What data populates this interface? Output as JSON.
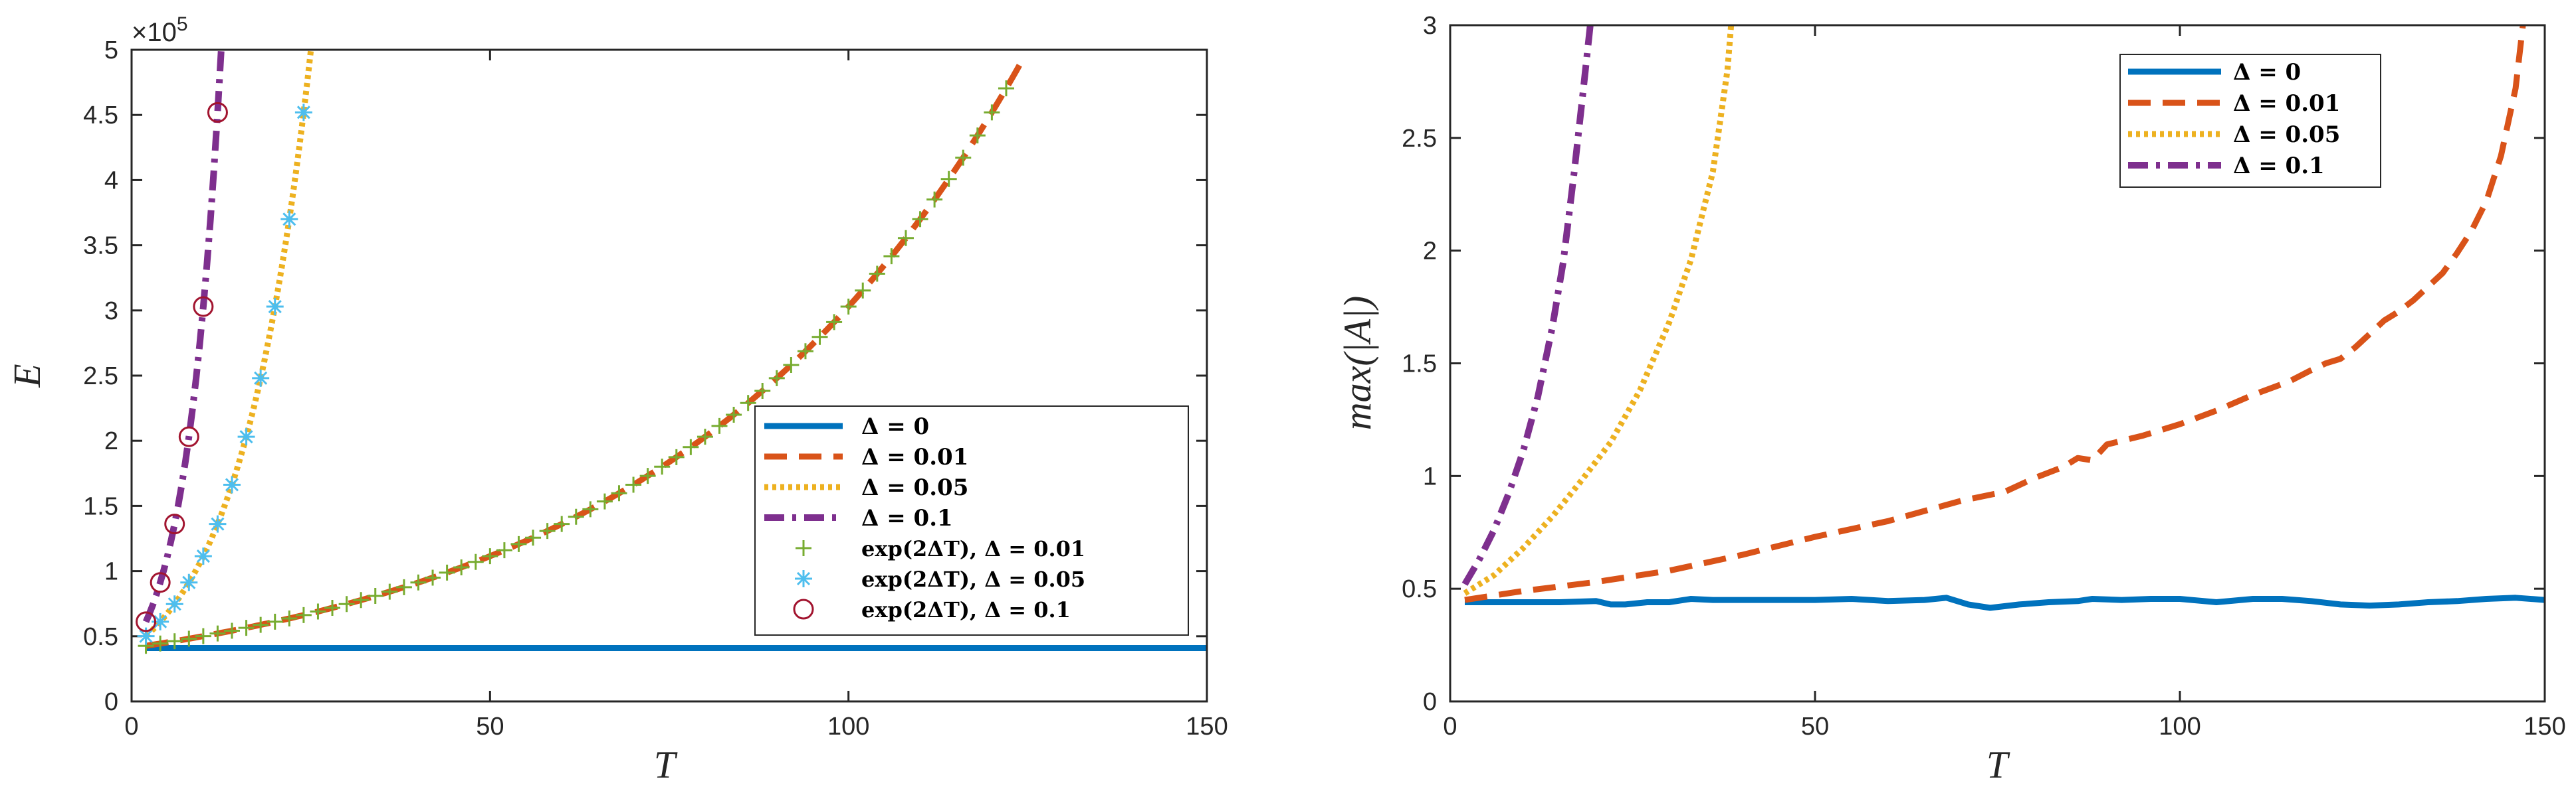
{
  "colors": {
    "blue": "#0072bd",
    "orange": "#d95319",
    "yellow": "#edb120",
    "purple": "#7e2f8e",
    "green": "#77ac30",
    "cyan": "#4dbeee",
    "maroon": "#a2142f"
  },
  "chart_data": [
    {
      "type": "line",
      "panel": "left",
      "xlabel": "T",
      "ylabel": "E",
      "xlim": [
        0,
        150
      ],
      "ylim": [
        0,
        500000
      ],
      "y_multiplier_label": "×10",
      "y_multiplier_exponent": "5",
      "xticks": [
        "0",
        "50",
        "100",
        "150"
      ],
      "yticks": [
        "0",
        "0.5",
        "1",
        "1.5",
        "2",
        "2.5",
        "3",
        "3.5",
        "4",
        "4.5",
        "5"
      ],
      "legend_position": "lower-right",
      "series": [
        {
          "name": "Δ = 0",
          "legend_id": "d0",
          "style": "solid",
          "color_key": "blue",
          "formula": "const",
          "E0": 41000,
          "t_start": 2,
          "t_end": 150
        },
        {
          "name": "Δ = 0.01",
          "legend_id": "d001",
          "style": "dashed",
          "color_key": "orange",
          "formula": "exp",
          "delta": 0.01,
          "E0": 41000,
          "t_start": 2,
          "t_end": 124
        },
        {
          "name": "Δ = 0.05",
          "legend_id": "d005",
          "style": "dotted",
          "color_key": "yellow",
          "formula": "exp",
          "delta": 0.05,
          "E0": 41000,
          "t_start": 2,
          "t_end": 30
        },
        {
          "name": "Δ = 0.1",
          "legend_id": "d01",
          "style": "dashdot",
          "color_key": "purple",
          "formula": "exp",
          "delta": 0.1,
          "E0": 41000,
          "t_start": 2,
          "t_end": 15
        },
        {
          "name": "exp(2ΔT), Δ = 0.01",
          "legend_id": "m001",
          "style": "marker-plus",
          "color_key": "green",
          "formula": "exp",
          "delta": 0.01,
          "E0": 41000,
          "t_start": 2,
          "t_end": 122,
          "t_step": 2
        },
        {
          "name": "exp(2ΔT), Δ = 0.05",
          "legend_id": "m005",
          "style": "marker-star",
          "color_key": "cyan",
          "formula": "exp",
          "delta": 0.05,
          "E0": 41000,
          "t_start": 2,
          "t_end": 24,
          "t_step": 2
        },
        {
          "name": "exp(2ΔT), Δ = 0.1",
          "legend_id": "m01",
          "style": "marker-circle",
          "color_key": "maroon",
          "formula": "exp",
          "delta": 0.1,
          "E0": 41000,
          "t_start": 2,
          "t_end": 12,
          "t_step": 2
        }
      ]
    },
    {
      "type": "line",
      "panel": "right",
      "xlabel": "T",
      "ylabel": "max(|A|)",
      "xlim": [
        0,
        150
      ],
      "ylim": [
        0,
        3
      ],
      "xticks": [
        "0",
        "50",
        "100",
        "150"
      ],
      "yticks": [
        "0",
        "0.5",
        "1",
        "1.5",
        "2",
        "2.5",
        "3"
      ],
      "legend_position": "upper-right",
      "series": [
        {
          "name": "Δ = 0",
          "legend_id": "d0",
          "style": "solid",
          "color_key": "blue",
          "x": [
            2,
            5,
            10,
            15,
            20,
            22,
            24,
            27,
            30,
            33,
            36,
            40,
            45,
            50,
            55,
            60,
            65,
            68,
            71,
            74,
            78,
            82,
            86,
            88,
            92,
            96,
            100,
            105,
            110,
            114,
            118,
            122,
            126,
            130,
            134,
            138,
            142,
            146,
            150
          ],
          "y": [
            0.44,
            0.44,
            0.44,
            0.44,
            0.445,
            0.43,
            0.43,
            0.44,
            0.44,
            0.455,
            0.45,
            0.45,
            0.45,
            0.45,
            0.455,
            0.445,
            0.45,
            0.46,
            0.43,
            0.415,
            0.43,
            0.44,
            0.445,
            0.455,
            0.45,
            0.455,
            0.455,
            0.44,
            0.455,
            0.455,
            0.445,
            0.43,
            0.425,
            0.43,
            0.44,
            0.445,
            0.455,
            0.46,
            0.45
          ]
        },
        {
          "name": "Δ = 0.01",
          "legend_id": "d001",
          "style": "dashed",
          "color_key": "orange",
          "x": [
            2,
            10,
            20,
            30,
            40,
            50,
            60,
            70,
            76,
            80,
            84,
            86,
            88,
            90,
            95,
            100,
            105,
            110,
            115,
            118,
            120,
            122,
            124,
            126,
            128,
            130,
            132,
            134,
            136,
            138,
            140,
            142,
            144,
            146,
            147
          ],
          "y": [
            0.45,
            0.49,
            0.53,
            0.58,
            0.65,
            0.73,
            0.8,
            0.89,
            0.93,
            0.99,
            1.04,
            1.08,
            1.07,
            1.14,
            1.18,
            1.23,
            1.29,
            1.36,
            1.42,
            1.47,
            1.5,
            1.52,
            1.57,
            1.63,
            1.69,
            1.73,
            1.78,
            1.84,
            1.9,
            1.99,
            2.09,
            2.22,
            2.42,
            2.72,
            3.0
          ]
        },
        {
          "name": "Δ = 0.05",
          "legend_id": "d005",
          "style": "dotted",
          "color_key": "yellow",
          "x": [
            2,
            6,
            10,
            14,
            18,
            22,
            26,
            30,
            33,
            36,
            38,
            38.5
          ],
          "y": [
            0.48,
            0.56,
            0.68,
            0.82,
            0.98,
            1.15,
            1.38,
            1.68,
            1.96,
            2.35,
            2.8,
            3.0
          ]
        },
        {
          "name": "Δ = 0.1",
          "legend_id": "d01",
          "style": "dashdot",
          "color_key": "purple",
          "x": [
            2,
            4,
            6,
            8,
            10,
            12,
            14,
            15.5,
            17,
            18.2,
            19.2
          ],
          "y": [
            0.52,
            0.63,
            0.76,
            0.92,
            1.11,
            1.35,
            1.66,
            1.95,
            2.35,
            2.7,
            3.0
          ]
        }
      ]
    }
  ]
}
